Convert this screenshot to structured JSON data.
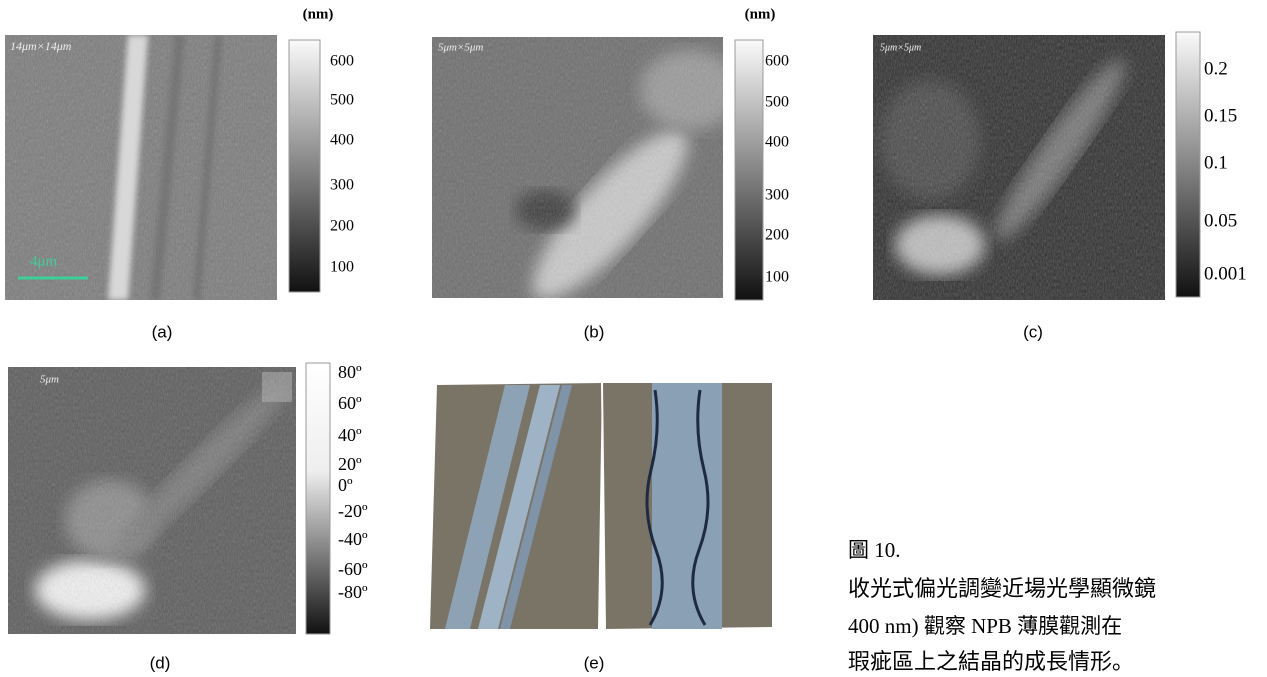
{
  "panels": [
    {
      "unit": "(nm)",
      "scale_label": "14μm×14μm",
      "scale_bar": "4μm",
      "colorbar_labels": [
        "600",
        "500",
        "400",
        "300",
        "200",
        "100"
      ],
      "caption": "(a)"
    },
    {
      "unit": "(nm)",
      "scale_label": "5μm×5μm",
      "colorbar_labels": [
        "600",
        "500",
        "400",
        "300",
        "200",
        "100"
      ],
      "caption": "(b)"
    },
    {
      "scale_label": "5μm×5μm",
      "colorbar_labels": [
        "0.2",
        "0.15",
        "0.1",
        "0.05",
        "0.001"
      ],
      "caption": "(c)"
    },
    {
      "scale_label": "5μm",
      "colorbar_labels": [
        "80º",
        "60º",
        "40º",
        "20º",
        "0º",
        "-20º",
        "-40º",
        "-60º",
        "-80º"
      ],
      "caption": "(d)"
    },
    {
      "caption": "(e)"
    }
  ],
  "figure_caption": {
    "label": "圖 10.",
    "lines": [
      "收光式偏光調變近場光學顯微鏡",
      "400 nm) 觀察 NPB 薄膜觀測在",
      "瑕疵區上之結晶的成長情形。"
    ]
  }
}
